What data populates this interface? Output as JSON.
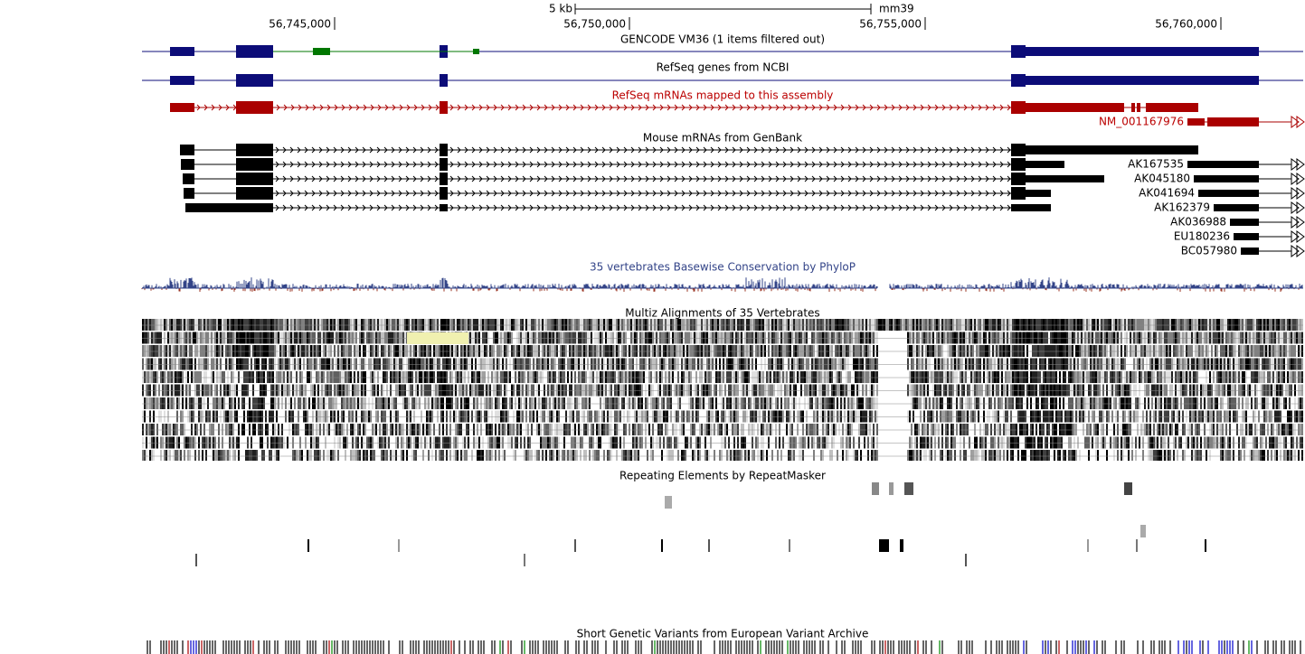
{
  "ruler": {
    "scale": "5 kb",
    "assembly": "mm39",
    "ticks": [
      "56,745,000",
      "56,750,000",
      "56,755,000",
      "56,760,000"
    ]
  },
  "tracks": {
    "gencode": "GENCODE VM36 (1 items filtered out)",
    "refseq": "RefSeq genes from NCBI",
    "refseq_mrna": "RefSeq mRNAs mapped to this assembly",
    "refseq_mrna_item": "NM_001167976",
    "mrna": "Mouse mRNAs from GenBank",
    "mrna_items": [
      "AK167535",
      "AK045180",
      "AK041694",
      "AK162379",
      "AK036988",
      "EU180236",
      "BC057980"
    ],
    "phylop": "35 vertebrates Basewise Conservation by PhyloP",
    "multiz": "Multiz Alignments of 35 Vertebrates",
    "repeats": "Repeating Elements by RepeatMasker",
    "eva": "Short Genetic Variants from European Variant Archive"
  }
}
